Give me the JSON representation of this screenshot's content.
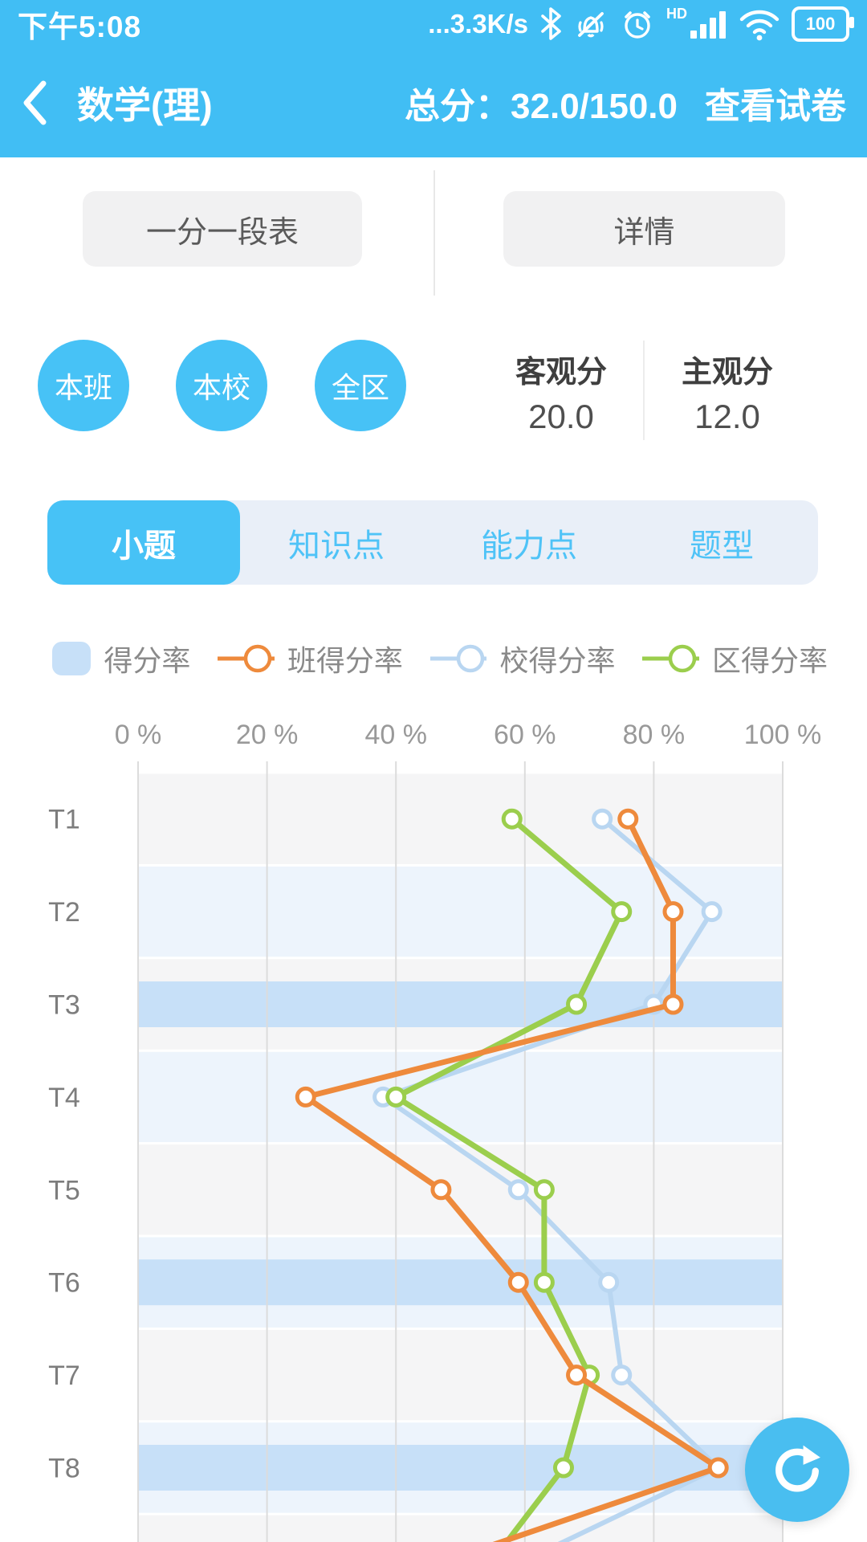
{
  "status_bar": {
    "time": "下午5:08",
    "network_speed": "...3.3K/s",
    "hd_label": "HD",
    "battery_level": "100"
  },
  "header": {
    "title": "数学(理)",
    "total_score": "总分：32.0/150.0",
    "view_paper": "查看试卷"
  },
  "nav_buttons": {
    "segment_table": "一分一段表",
    "details": "详情"
  },
  "scopes": [
    "本班",
    "本校",
    "全区"
  ],
  "scores": {
    "objective_label": "客观分",
    "objective_value": "20.0",
    "subjective_label": "主观分",
    "subjective_value": "12.0"
  },
  "tabs": [
    {
      "label": "小题",
      "active": true
    },
    {
      "label": "知识点",
      "active": false
    },
    {
      "label": "能力点",
      "active": false
    },
    {
      "label": "题型",
      "active": false
    }
  ],
  "legend": [
    {
      "label": "得分率",
      "type": "bar",
      "color": "#c7e0f8"
    },
    {
      "label": "班得分率",
      "type": "line",
      "color": "#ee8a3c"
    },
    {
      "label": "校得分率",
      "type": "line",
      "color": "#b9d6f1"
    },
    {
      "label": "区得分率",
      "type": "line",
      "color": "#9bce4d"
    }
  ],
  "chart_data": {
    "type": "bar",
    "orientation": "horizontal",
    "categories": [
      "T1",
      "T2",
      "T3",
      "T4",
      "T5",
      "T6",
      "T7",
      "T8"
    ],
    "x_ticks": [
      "0 %",
      "20 %",
      "40 %",
      "60 %",
      "80 %",
      "100 %"
    ],
    "xlim": [
      0,
      100
    ],
    "grid": true,
    "bar_series": {
      "name": "得分率",
      "color": "#c7e0f8",
      "values": [
        0,
        0,
        100,
        0,
        0,
        100,
        0,
        100
      ]
    },
    "series": [
      {
        "name": "班得分率",
        "color": "#ee8a3c",
        "width": 7,
        "values": [
          76,
          83,
          83,
          26,
          47,
          59,
          68,
          90
        ],
        "clipped_next": 48
      },
      {
        "name": "校得分率",
        "color": "#b9d6f1",
        "width": 6,
        "values": [
          72,
          89,
          80,
          38,
          59,
          73,
          75,
          90
        ],
        "clipped_next": 60
      },
      {
        "name": "区得分率",
        "color": "#9bce4d",
        "width": 7,
        "values": [
          58,
          75,
          68,
          40,
          63,
          63,
          70,
          66
        ],
        "clipped_next": 55
      }
    ],
    "zebra_colors": [
      "#f5f5f6",
      "#edf4fc"
    ],
    "gridline_color": "#dcdcdc",
    "tick_color": "#999999",
    "row_label_color": "#7d7d7d",
    "legend_position": "top"
  },
  "fab": {
    "action": "refresh"
  }
}
